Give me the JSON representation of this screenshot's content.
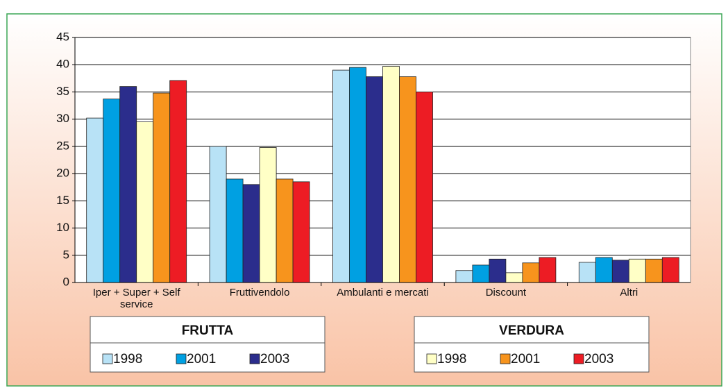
{
  "chart_data": {
    "type": "bar",
    "categories": [
      "Iper + Super + Self service",
      "Fruttivendolo",
      "Ambulanti e mercati",
      "Discount",
      "Altri"
    ],
    "series": [
      {
        "name": "1998",
        "group": "FRUTTA",
        "color": "#b8e2f6",
        "values": [
          30.2,
          25,
          39,
          2.2,
          3.7
        ]
      },
      {
        "name": "2001",
        "group": "FRUTTA",
        "color": "#00a0e2",
        "values": [
          33.7,
          19,
          39.5,
          3.2,
          4.6
        ]
      },
      {
        "name": "2003",
        "group": "FRUTTA",
        "color": "#2b2d8c",
        "values": [
          36,
          18,
          37.8,
          4.3,
          4.1
        ]
      },
      {
        "name": "1998",
        "group": "VERDURA",
        "color": "#ffffc6",
        "values": [
          29.5,
          24.8,
          39.7,
          1.8,
          4.3
        ]
      },
      {
        "name": "2001",
        "group": "VERDURA",
        "color": "#f7941d",
        "values": [
          34.8,
          19,
          37.8,
          3.6,
          4.3
        ]
      },
      {
        "name": "2003",
        "group": "VERDURA",
        "color": "#ed1c24",
        "values": [
          37.1,
          18.5,
          35,
          4.6,
          4.6
        ]
      }
    ],
    "ylim": [
      0,
      45
    ],
    "yticks": [
      0,
      5,
      10,
      15,
      20,
      25,
      30,
      35,
      40,
      45
    ],
    "grid": true
  }
}
